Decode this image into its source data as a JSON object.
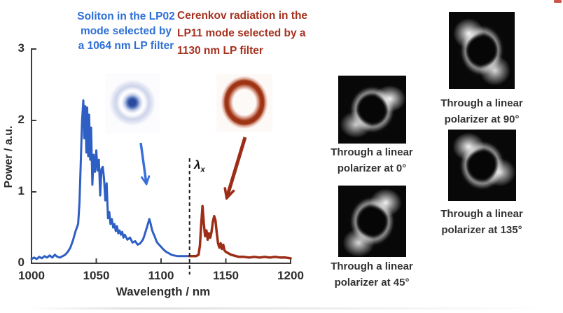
{
  "figure": {
    "annotations": {
      "soliton": {
        "color": "#2e6fd6",
        "lines": [
          "Soliton in the LP02",
          "mode selected by",
          "a 1064 nm LP filter"
        ]
      },
      "cerenkov": {
        "color": "#a53220",
        "lines": [
          "Cerenkov radiation in the",
          "LP11 mode selected by a",
          "1130 nm LP filter"
        ]
      },
      "lambda_x": {
        "symbol": "λ",
        "subscript": "x"
      }
    },
    "mode_images": {
      "soliton_mode": {
        "name": "LP02 mode profile",
        "appearance": "blue concentric ring with bright central spot"
      },
      "cerenkov_mode": {
        "name": "LP11 mode profile",
        "appearance": "red donut ring"
      }
    },
    "polarizers": [
      {
        "label_line1": "Through a linear",
        "label_line2": "polarizer at 0°",
        "angle_deg": 0
      },
      {
        "label_line1": "Through a linear",
        "label_line2": "polarizer at 45°",
        "angle_deg": 45
      },
      {
        "label_line1": "Through a linear",
        "label_line2": "polarizer at 90°",
        "angle_deg": 90
      },
      {
        "label_line1": "Through a linear",
        "label_line2": "polarizer at 135°",
        "angle_deg": 135
      }
    ]
  },
  "chart_data": {
    "type": "line",
    "title": "",
    "xlabel": "Wavelength / nm",
    "ylabel": "Power / a.u.",
    "xlim": [
      1000,
      1200
    ],
    "ylim": [
      0,
      3
    ],
    "x_ticks": [
      1000,
      1050,
      1100,
      1150,
      1200
    ],
    "y_ticks": [
      0,
      1,
      2,
      3
    ],
    "lambda_x_nm": 1122,
    "grid": false,
    "legend": "none",
    "series": [
      {
        "name": "Soliton spectrum in LP02 mode",
        "color": "#2d5fc4",
        "points": [
          [
            1000,
            0.06
          ],
          [
            1002,
            0.08
          ],
          [
            1004,
            0.06
          ],
          [
            1006,
            0.09
          ],
          [
            1008,
            0.07
          ],
          [
            1010,
            0.1
          ],
          [
            1012,
            0.08
          ],
          [
            1014,
            0.11
          ],
          [
            1016,
            0.08
          ],
          [
            1018,
            0.12
          ],
          [
            1020,
            0.09
          ],
          [
            1022,
            0.08
          ],
          [
            1024,
            0.1
          ],
          [
            1026,
            0.12
          ],
          [
            1028,
            0.16
          ],
          [
            1030,
            0.22
          ],
          [
            1032,
            0.32
          ],
          [
            1034,
            0.45
          ],
          [
            1036,
            0.55
          ],
          [
            1037,
            0.85
          ],
          [
            1038,
            1.4
          ],
          [
            1039,
            2.0
          ],
          [
            1040,
            2.28
          ],
          [
            1040.7,
            1.75
          ],
          [
            1041.5,
            2.2
          ],
          [
            1042.3,
            1.55
          ],
          [
            1043,
            2.18
          ],
          [
            1043.8,
            1.5
          ],
          [
            1044.5,
            2.08
          ],
          [
            1045.3,
            1.45
          ],
          [
            1046,
            1.9
          ],
          [
            1047,
            1.1
          ],
          [
            1048,
            1.52
          ],
          [
            1049,
            1.28
          ],
          [
            1050,
            1.58
          ],
          [
            1051,
            1.3
          ],
          [
            1052,
            1.45
          ],
          [
            1053,
            0.95
          ],
          [
            1054,
            1.32
          ],
          [
            1055,
            1.35
          ],
          [
            1056,
            1.18
          ],
          [
            1057,
            0.88
          ],
          [
            1058,
            1.12
          ],
          [
            1059,
            0.63
          ],
          [
            1060,
            0.72
          ],
          [
            1061,
            0.55
          ],
          [
            1062,
            0.62
          ],
          [
            1063,
            0.5
          ],
          [
            1064,
            0.55
          ],
          [
            1065,
            0.45
          ],
          [
            1066,
            0.52
          ],
          [
            1067,
            0.42
          ],
          [
            1068,
            0.46
          ],
          [
            1069,
            0.4
          ],
          [
            1070,
            0.44
          ],
          [
            1071,
            0.36
          ],
          [
            1072,
            0.4
          ],
          [
            1074,
            0.33
          ],
          [
            1076,
            0.36
          ],
          [
            1078,
            0.29
          ],
          [
            1080,
            0.31
          ],
          [
            1082,
            0.26
          ],
          [
            1084,
            0.28
          ],
          [
            1086,
            0.33
          ],
          [
            1087,
            0.38
          ],
          [
            1088,
            0.44
          ],
          [
            1089,
            0.5
          ],
          [
            1090,
            0.56
          ],
          [
            1091,
            0.62
          ],
          [
            1092,
            0.55
          ],
          [
            1093,
            0.47
          ],
          [
            1094,
            0.42
          ],
          [
            1095,
            0.38
          ],
          [
            1096,
            0.33
          ],
          [
            1097,
            0.29
          ],
          [
            1098,
            0.27
          ],
          [
            1100,
            0.23
          ],
          [
            1102,
            0.19
          ],
          [
            1104,
            0.16
          ],
          [
            1106,
            0.14
          ],
          [
            1108,
            0.12
          ],
          [
            1110,
            0.11
          ],
          [
            1113,
            0.1
          ],
          [
            1116,
            0.1
          ],
          [
            1119,
            0.1
          ],
          [
            1122,
            0.1
          ],
          [
            1124,
            0.1
          ]
        ]
      },
      {
        "name": "Cerenkov radiation in LP11 mode",
        "color": "#9c2d16",
        "points": [
          [
            1122,
            0.1
          ],
          [
            1125,
            0.1
          ],
          [
            1127,
            0.1
          ],
          [
            1129,
            0.12
          ],
          [
            1130,
            0.25
          ],
          [
            1131,
            0.55
          ],
          [
            1132,
            0.8
          ],
          [
            1133,
            0.55
          ],
          [
            1134,
            0.38
          ],
          [
            1135,
            0.46
          ],
          [
            1136,
            0.33
          ],
          [
            1137,
            0.42
          ],
          [
            1138,
            0.36
          ],
          [
            1139,
            0.44
          ],
          [
            1140,
            0.58
          ],
          [
            1141,
            0.66
          ],
          [
            1142,
            0.6
          ],
          [
            1143,
            0.42
          ],
          [
            1144,
            0.28
          ],
          [
            1145,
            0.22
          ],
          [
            1146,
            0.28
          ],
          [
            1147,
            0.2
          ],
          [
            1148,
            0.26
          ],
          [
            1149,
            0.18
          ],
          [
            1150,
            0.16
          ],
          [
            1152,
            0.14
          ],
          [
            1154,
            0.12
          ],
          [
            1156,
            0.11
          ],
          [
            1158,
            0.1
          ],
          [
            1160,
            0.09
          ],
          [
            1164,
            0.09
          ],
          [
            1168,
            0.08
          ],
          [
            1172,
            0.09
          ],
          [
            1176,
            0.08
          ],
          [
            1180,
            0.09
          ],
          [
            1184,
            0.08
          ],
          [
            1188,
            0.09
          ],
          [
            1192,
            0.08
          ],
          [
            1196,
            0.08
          ],
          [
            1200,
            0.07
          ]
        ]
      }
    ]
  }
}
